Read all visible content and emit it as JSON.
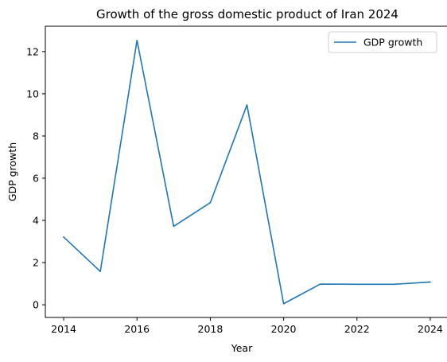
{
  "chart_data": {
    "type": "line",
    "title": "Growth of the gross domestic product of Iran 2024",
    "xlabel": "Year",
    "ylabel": "GDP growth",
    "x": [
      2014,
      2015,
      2016,
      2017,
      2018,
      2019,
      2020,
      2021,
      2022,
      2023,
      2024
    ],
    "series": [
      {
        "name": "GDP growth",
        "values": [
          3.21,
          1.58,
          12.53,
          3.72,
          4.84,
          9.47,
          0.05,
          0.98,
          0.97,
          0.97,
          1.08
        ]
      }
    ],
    "xlim": [
      2013.5,
      2024.5
    ],
    "ylim": [
      -0.6,
      13.2
    ],
    "xticks": [
      "2014",
      "2016",
      "2018",
      "2020",
      "2022",
      "2024"
    ],
    "yticks": [
      "0",
      "2",
      "4",
      "6",
      "8",
      "10",
      "12"
    ],
    "grid": false,
    "legend_position": "upper right",
    "colors": {
      "line": "#1f77b4",
      "axis": "#000000",
      "legend_border": "#d0d0d0"
    }
  }
}
